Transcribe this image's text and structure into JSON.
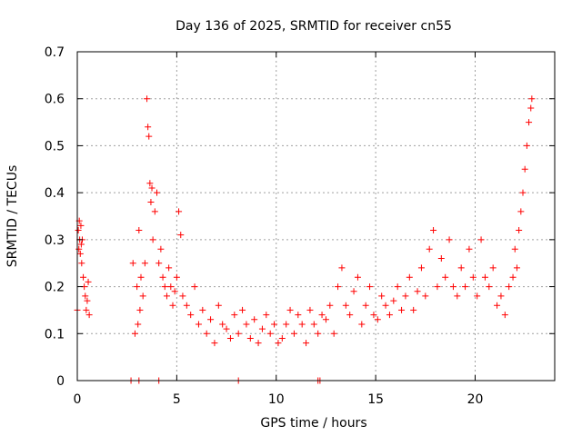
{
  "chart_data": {
    "type": "scatter",
    "title": "Day 136 of 2025, SRMTID for receiver cn55",
    "xlabel": "GPS time / hours",
    "ylabel": "SRMTID / TECUs",
    "xlim": [
      0,
      24
    ],
    "ylim": [
      0,
      0.7
    ],
    "x_ticks": [
      0,
      5,
      10,
      15,
      20
    ],
    "x_tick_labels": [
      "0",
      "5",
      "10",
      "15",
      "20"
    ],
    "y_ticks": [
      0,
      0.1,
      0.2,
      0.3,
      0.4,
      0.5,
      0.6,
      0.7
    ],
    "y_tick_labels": [
      "0",
      "0.1",
      "0.2",
      "0.3",
      "0.4",
      "0.5",
      "0.6",
      "0.7"
    ],
    "grid": true,
    "marker": "plus",
    "series": [
      {
        "name": "SRMTID",
        "color": "#ff0000",
        "x": [
          0.0,
          0.05,
          0.08,
          0.1,
          0.12,
          0.15,
          0.18,
          0.2,
          0.22,
          0.25,
          0.3,
          0.35,
          0.4,
          0.45,
          0.5,
          0.55,
          0.6,
          2.8,
          2.9,
          3.0,
          3.05,
          3.1,
          3.15,
          3.2,
          3.3,
          3.4,
          3.5,
          3.55,
          3.6,
          3.65,
          3.7,
          3.75,
          3.8,
          3.9,
          4.0,
          4.1,
          4.2,
          4.3,
          4.4,
          4.5,
          4.6,
          4.7,
          4.8,
          4.9,
          5.0,
          5.1,
          5.2,
          5.3,
          5.5,
          5.7,
          5.9,
          6.1,
          6.3,
          6.5,
          6.7,
          6.9,
          7.1,
          7.3,
          7.5,
          7.7,
          7.9,
          8.1,
          8.3,
          8.5,
          8.7,
          8.9,
          9.1,
          9.3,
          9.5,
          9.7,
          9.9,
          10.1,
          10.3,
          10.5,
          10.7,
          10.9,
          11.1,
          11.3,
          11.5,
          11.7,
          11.9,
          12.1,
          12.3,
          12.5,
          12.7,
          12.9,
          13.1,
          13.3,
          13.5,
          13.7,
          13.9,
          14.1,
          14.3,
          14.5,
          14.7,
          14.9,
          15.1,
          15.3,
          15.5,
          15.7,
          15.9,
          16.1,
          16.3,
          16.5,
          16.7,
          16.9,
          17.1,
          17.3,
          17.5,
          17.7,
          17.9,
          18.1,
          18.3,
          18.5,
          18.7,
          18.9,
          19.1,
          19.3,
          19.5,
          19.7,
          19.9,
          20.1,
          20.3,
          20.5,
          20.7,
          20.9,
          21.1,
          21.3,
          21.5,
          21.7,
          21.9,
          22.0,
          22.1,
          22.2,
          22.3,
          22.4,
          22.5,
          22.6,
          22.7,
          22.8,
          22.85,
          2.7,
          3.1,
          4.1,
          8.1,
          12.1,
          12.2
        ],
        "y": [
          0.15,
          0.32,
          0.28,
          0.34,
          0.3,
          0.27,
          0.33,
          0.29,
          0.25,
          0.3,
          0.22,
          0.2,
          0.18,
          0.15,
          0.17,
          0.21,
          0.14,
          0.25,
          0.1,
          0.2,
          0.12,
          0.32,
          0.15,
          0.22,
          0.18,
          0.25,
          0.6,
          0.54,
          0.52,
          0.42,
          0.38,
          0.41,
          0.3,
          0.36,
          0.4,
          0.25,
          0.28,
          0.22,
          0.2,
          0.18,
          0.24,
          0.2,
          0.16,
          0.19,
          0.22,
          0.36,
          0.31,
          0.18,
          0.16,
          0.14,
          0.2,
          0.12,
          0.15,
          0.1,
          0.13,
          0.08,
          0.16,
          0.12,
          0.11,
          0.09,
          0.14,
          0.1,
          0.15,
          0.12,
          0.09,
          0.13,
          0.08,
          0.11,
          0.14,
          0.1,
          0.12,
          0.08,
          0.09,
          0.12,
          0.15,
          0.1,
          0.14,
          0.12,
          0.08,
          0.15,
          0.12,
          0.1,
          0.14,
          0.13,
          0.16,
          0.1,
          0.2,
          0.24,
          0.16,
          0.14,
          0.19,
          0.22,
          0.12,
          0.16,
          0.2,
          0.14,
          0.13,
          0.18,
          0.16,
          0.14,
          0.17,
          0.2,
          0.15,
          0.18,
          0.22,
          0.15,
          0.19,
          0.24,
          0.18,
          0.28,
          0.32,
          0.2,
          0.26,
          0.22,
          0.3,
          0.2,
          0.18,
          0.24,
          0.2,
          0.28,
          0.22,
          0.18,
          0.3,
          0.22,
          0.2,
          0.24,
          0.16,
          0.18,
          0.14,
          0.2,
          0.22,
          0.28,
          0.24,
          0.32,
          0.36,
          0.4,
          0.45,
          0.5,
          0.55,
          0.58,
          0.6,
          0.0,
          0.0,
          0.0,
          0.0,
          0.0,
          0.0
        ]
      }
    ]
  }
}
